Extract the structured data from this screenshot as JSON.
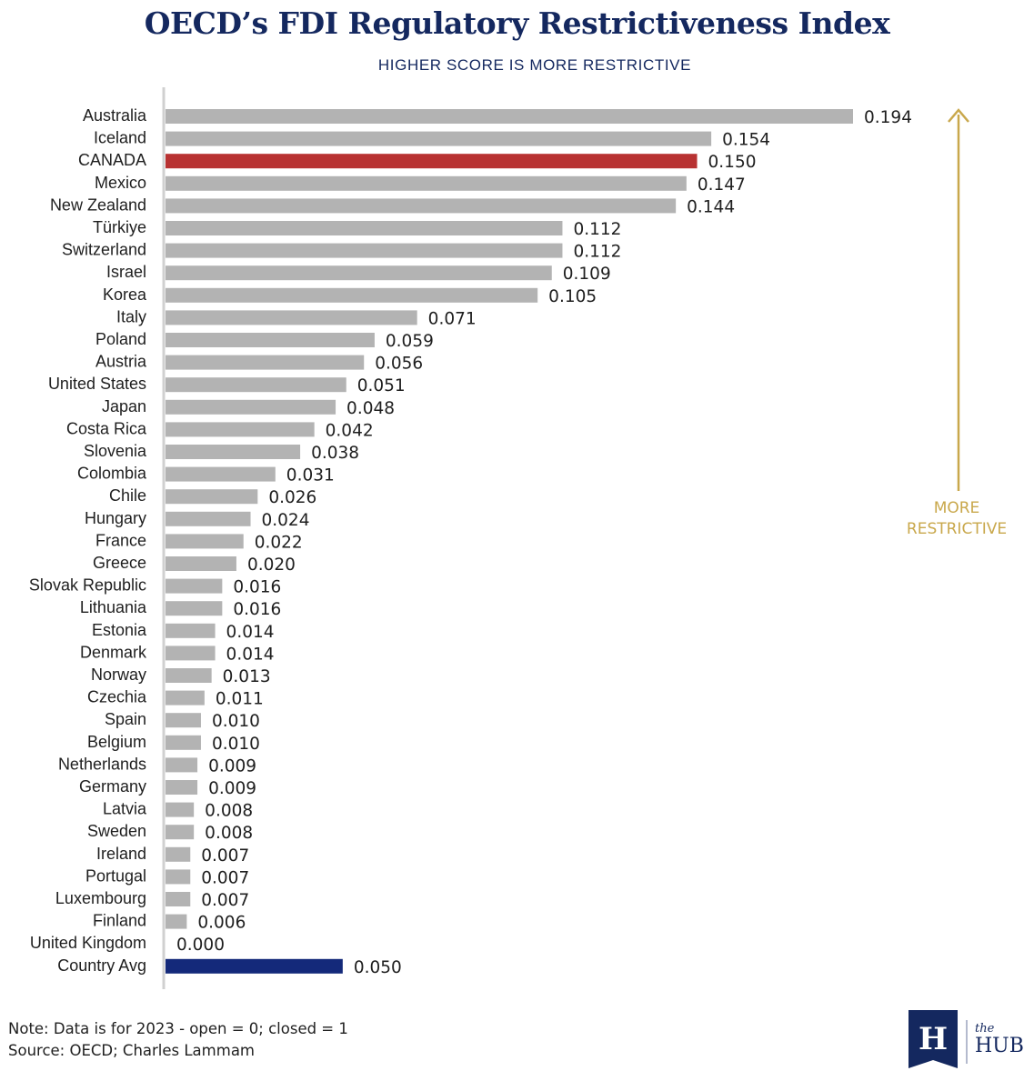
{
  "chart_data": {
    "type": "bar",
    "orientation": "horizontal",
    "title": "OECD’s FDI Regulatory Restrictiveness Index",
    "subtitle": "HIGHER SCORE IS MORE RESTRICTIVE",
    "categories": [
      "Australia",
      "Iceland",
      "CANADA",
      "Mexico",
      "New Zealand",
      "Türkiye",
      "Switzerland",
      "Israel",
      "Korea",
      "Italy",
      "Poland",
      "Austria",
      "United States",
      "Japan",
      "Costa Rica",
      "Slovenia",
      "Colombia",
      "Chile",
      "Hungary",
      "France",
      "Greece",
      "Slovak Republic",
      "Lithuania",
      "Estonia",
      "Denmark",
      "Norway",
      "Czechia",
      "Spain",
      "Belgium",
      "Netherlands",
      "Germany",
      "Latvia",
      "Sweden",
      "Ireland",
      "Portugal",
      "Luxembourg",
      "Finland",
      "United Kingdom",
      "Country Avg"
    ],
    "values": [
      0.194,
      0.154,
      0.15,
      0.147,
      0.144,
      0.112,
      0.112,
      0.109,
      0.105,
      0.071,
      0.059,
      0.056,
      0.051,
      0.048,
      0.042,
      0.038,
      0.031,
      0.026,
      0.024,
      0.022,
      0.02,
      0.016,
      0.016,
      0.014,
      0.014,
      0.013,
      0.011,
      0.01,
      0.01,
      0.009,
      0.009,
      0.008,
      0.008,
      0.007,
      0.007,
      0.007,
      0.006,
      0.0,
      0.05
    ],
    "value_labels": [
      "0.194",
      "0.154",
      "0.150",
      "0.147",
      "0.144",
      "0.112",
      "0.112",
      "0.109",
      "0.105",
      "0.071",
      "0.059",
      "0.056",
      "0.051",
      "0.048",
      "0.042",
      "0.038",
      "0.031",
      "0.026",
      "0.024",
      "0.022",
      "0.020",
      "0.016",
      "0.016",
      "0.014",
      "0.014",
      "0.013",
      "0.011",
      "0.010",
      "0.010",
      "0.009",
      "0.009",
      "0.008",
      "0.008",
      "0.007",
      "0.007",
      "0.007",
      "0.006",
      "0.000",
      "0.050"
    ],
    "xlim": [
      0,
      0.194
    ],
    "grid": false,
    "legend": "none",
    "colors": {
      "default": "#b3b3b3",
      "highlight": "#b83232",
      "average": "#14297a",
      "axis": "#d0d0d0"
    },
    "highlight_category": "CANADA",
    "average_category": "Country Avg",
    "annotation": {
      "text_line1": "MORE",
      "text_line2": "RESTRICTIVE",
      "color": "#c9a84c"
    }
  },
  "notes": {
    "line1": "Note: Data is for 2023 - open = 0; closed = 1",
    "line2": "Source: OECD; Charles Lammam"
  },
  "logo": {
    "letter": "H",
    "small_text": "the",
    "big_text": "HUB",
    "color": "#14285f"
  }
}
